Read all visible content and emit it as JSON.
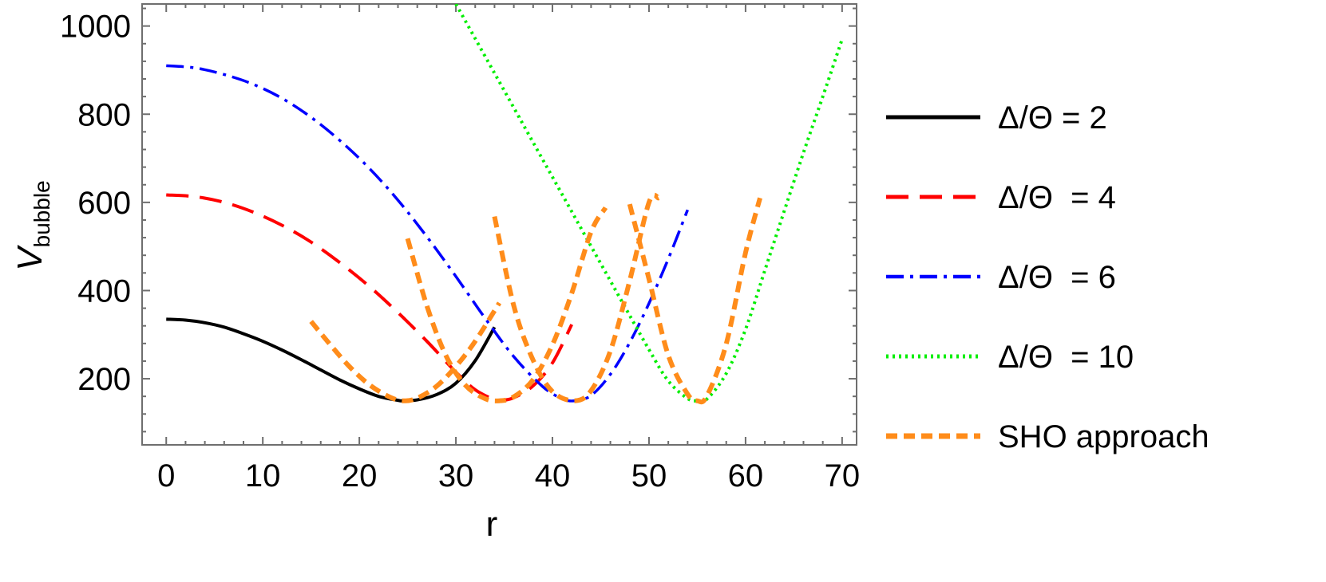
{
  "chart_data": {
    "type": "line",
    "xlabel": "r",
    "ylabel_main": "V",
    "ylabel_sub": "bubble",
    "xlim": [
      -2.5,
      71.5
    ],
    "ylim": [
      50,
      1050
    ],
    "xticks": [
      0,
      10,
      20,
      30,
      40,
      50,
      60,
      70
    ],
    "yticks": [
      200,
      400,
      600,
      800,
      1000
    ],
    "grid": false,
    "legend_position": "right",
    "series": [
      {
        "name": "Δ/Θ = 2",
        "color": "#000000",
        "style": "solid",
        "x": [
          0,
          2,
          4,
          6,
          8,
          10,
          12,
          14,
          16,
          18,
          20,
          22,
          24,
          24.5,
          26,
          28,
          30,
          32,
          34
        ],
        "y": [
          335,
          333,
          327,
          317,
          302,
          285,
          265,
          243,
          220,
          197,
          177,
          160,
          151,
          150,
          152,
          164,
          190,
          241,
          317
        ]
      },
      {
        "name": "Δ/Θ  = 4",
        "color": "#ff0000",
        "style": "dashed",
        "x": [
          0,
          3,
          6,
          9,
          12,
          15,
          18,
          21,
          24,
          27,
          30,
          32,
          34,
          34.5,
          36,
          38,
          40,
          42
        ],
        "y": [
          617,
          613,
          600,
          578,
          548,
          510,
          463,
          410,
          350,
          285,
          215,
          175,
          152,
          150,
          157,
          184,
          236,
          323
        ]
      },
      {
        "name": "Δ/Θ  = 6",
        "color": "#0000ff",
        "style": "dashdot",
        "x": [
          0,
          3,
          6,
          9,
          12,
          15,
          18,
          21,
          24,
          27,
          30,
          33,
          36,
          39,
          41,
          42.3,
          44,
          46,
          48,
          50,
          52,
          54
        ],
        "y": [
          910,
          905,
          890,
          868,
          836,
          793,
          740,
          678,
          605,
          522,
          432,
          338,
          250,
          182,
          155,
          150,
          162,
          210,
          282,
          371,
          472,
          583
        ]
      },
      {
        "name": "Δ/Θ  = 10",
        "color": "#00ee00",
        "style": "dotted",
        "x": [
          30,
          34,
          38,
          42,
          46,
          50,
          52,
          54,
          55,
          56,
          58,
          60,
          62,
          64,
          66,
          68,
          70
        ],
        "y": [
          1050,
          893,
          736,
          579,
          422,
          266,
          195,
          155,
          150,
          154,
          212,
          312,
          446,
          580,
          713,
          840,
          970
        ]
      },
      {
        "name": "SHO approach",
        "color": "#ff8c1a",
        "style": "dashed-thick",
        "segments": [
          {
            "x": [
              15,
              17,
              19,
              21,
              23,
              24.5,
              26,
              28,
              30,
              32,
              34.5
            ],
            "y": [
              330,
              277,
              227,
              187,
              160,
              150,
              156,
              183,
              228,
              285,
              372
            ]
          },
          {
            "x": [
              25,
              27,
              29,
              31,
              33,
              34.5,
              36,
              38,
              40,
              42,
              44,
              45.5
            ],
            "y": [
              518,
              365,
              251,
              185,
              155,
              150,
              159,
              198,
              277,
              394,
              533,
              588
            ]
          },
          {
            "x": [
              34,
              36,
              38,
              40,
              42.3,
              44,
              46,
              48,
              50,
              51
            ],
            "y": [
              568,
              365,
              242,
              171,
              150,
              173,
              263,
              422,
              600,
              610
            ]
          },
          {
            "x": [
              48,
              50,
              52,
              54,
              55,
              56,
              58,
              60,
              61.5
            ],
            "y": [
              596,
              426,
              253,
              165,
              150,
              161,
              279,
              486,
              610
            ]
          }
        ]
      }
    ]
  }
}
